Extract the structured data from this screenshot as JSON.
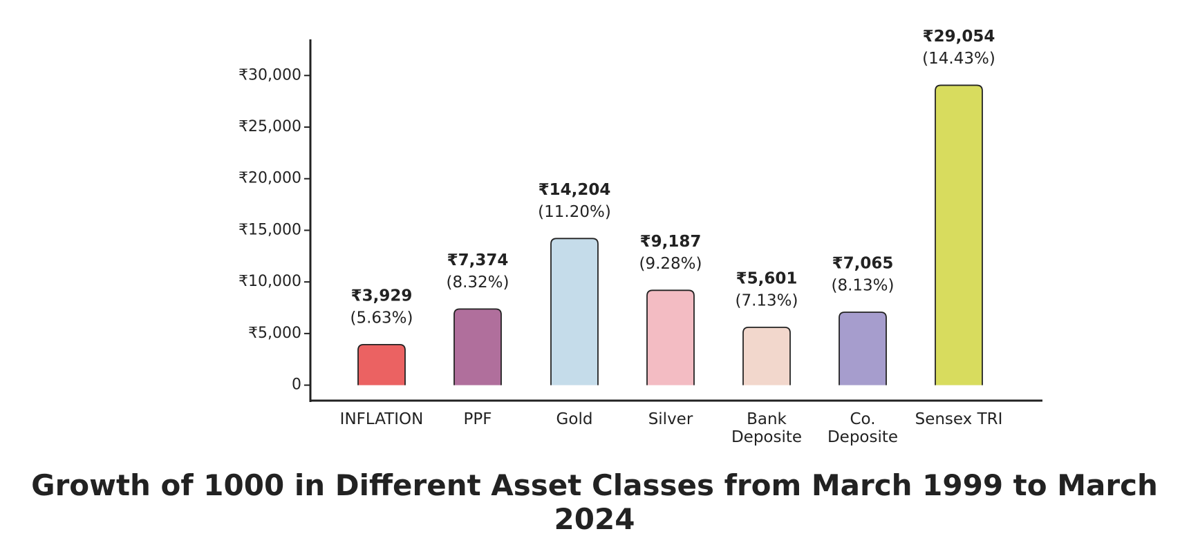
{
  "chart_data": {
    "type": "bar",
    "title": "Growth of 1000 in Different Asset Classes from March 1999 to March 2024",
    "categories": [
      "INFLATION",
      "PPF",
      "Gold",
      "Silver",
      "Bank\nDeposite",
      "Co.\nDeposite",
      "Sensex TRI"
    ],
    "values": [
      3929,
      7374,
      14204,
      9187,
      5601,
      7065,
      29054
    ],
    "value_labels": [
      "₹3,929",
      "₹7,374",
      "₹14,204",
      "₹9,187",
      "₹5,601",
      "₹7,065",
      "₹29,054"
    ],
    "return_labels": [
      "(5.63%)",
      "(8.32%)",
      "(11.20%)",
      "(9.28%)",
      "(7.13%)",
      "(8.13%)",
      "(14.43%)"
    ],
    "colors": [
      "#eb6262",
      "#b06f9c",
      "#c5dcea",
      "#f3bcc3",
      "#f2d7cc",
      "#a69dcd",
      "#d8dc5e"
    ],
    "ylim": [
      -1500,
      33500
    ],
    "yticks": [
      0,
      {
        "value": 5000,
        "label": "₹5,000"
      },
      {
        "value": 10000,
        "label": "₹10,000"
      },
      {
        "value": 15000,
        "label": "₹15,000"
      },
      {
        "value": 20000,
        "label": "₹20,000"
      },
      {
        "value": 25000,
        "label": "₹25,000"
      },
      {
        "value": 30000,
        "label": "₹30,000"
      }
    ]
  }
}
